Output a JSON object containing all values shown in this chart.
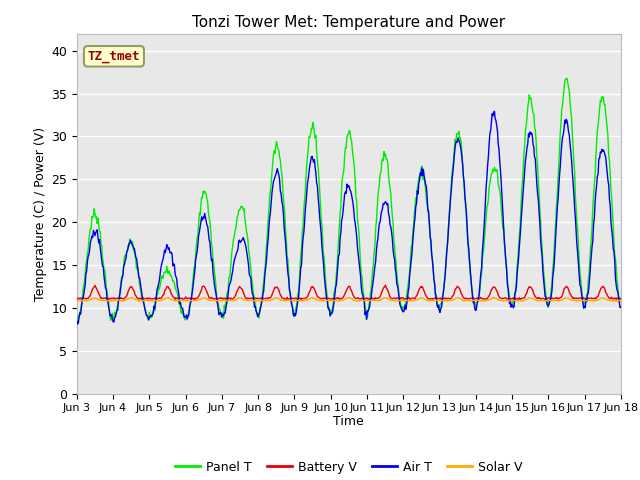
{
  "title": "Tonzi Tower Met: Temperature and Power",
  "xlabel": "Time",
  "ylabel": "Temperature (C) / Power (V)",
  "ylim": [
    0,
    42
  ],
  "yticks": [
    0,
    5,
    10,
    15,
    20,
    25,
    30,
    35,
    40
  ],
  "xtick_labels": [
    "Jun 3",
    "Jun 4",
    "Jun 5",
    "Jun 6",
    "Jun 7",
    "Jun 8",
    "Jun 9",
    "Jun 10",
    "Jun 11",
    "Jun 12",
    "Jun 13",
    "Jun 14",
    "Jun 15",
    "Jun 16",
    "Jun 17",
    "Jun 18"
  ],
  "bg_color": "#e8e8e8",
  "fig_color": "#ffffff",
  "grid_color": "#ffffff",
  "colors": {
    "Panel T": "#00ee00",
    "Battery V": "#ee0000",
    "Air T": "#0000ee",
    "Solar V": "#ffaa00"
  },
  "annotation_text": "TZ_tmet",
  "annotation_bg": "#ffffcc",
  "annotation_border": "#999966",
  "annotation_fg": "#990000",
  "n_days": 15,
  "pts_per_day": 48
}
